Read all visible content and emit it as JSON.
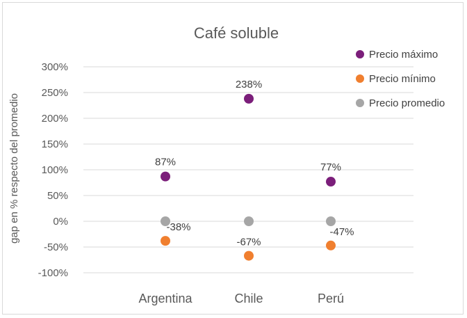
{
  "chart_data": {
    "type": "scatter",
    "title": "Café soluble",
    "ylabel": "gap en % respecto del promedio",
    "xlabel": "",
    "categories": [
      "Argentina",
      "Chile",
      "Perú"
    ],
    "y_ticks": [
      "300%",
      "250%",
      "200%",
      "150%",
      "100%",
      "50%",
      "0%",
      "-50%",
      "-100%"
    ],
    "ylim": [
      -100,
      300
    ],
    "grid": true,
    "legend_position": "right",
    "series": [
      {
        "name": "Precio máximo",
        "color": "#7b1e7a",
        "values": [
          87,
          238,
          77
        ],
        "labels": [
          "87%",
          "238%",
          "77%"
        ]
      },
      {
        "name": "Precio mínimo",
        "color": "#f07f2f",
        "values": [
          -38,
          -67,
          -47
        ],
        "labels": [
          "-38%",
          "-67%",
          "-47%"
        ]
      },
      {
        "name": "Precio promedio",
        "color": "#a6a6a6",
        "values": [
          0,
          0,
          0
        ],
        "labels": []
      }
    ]
  }
}
